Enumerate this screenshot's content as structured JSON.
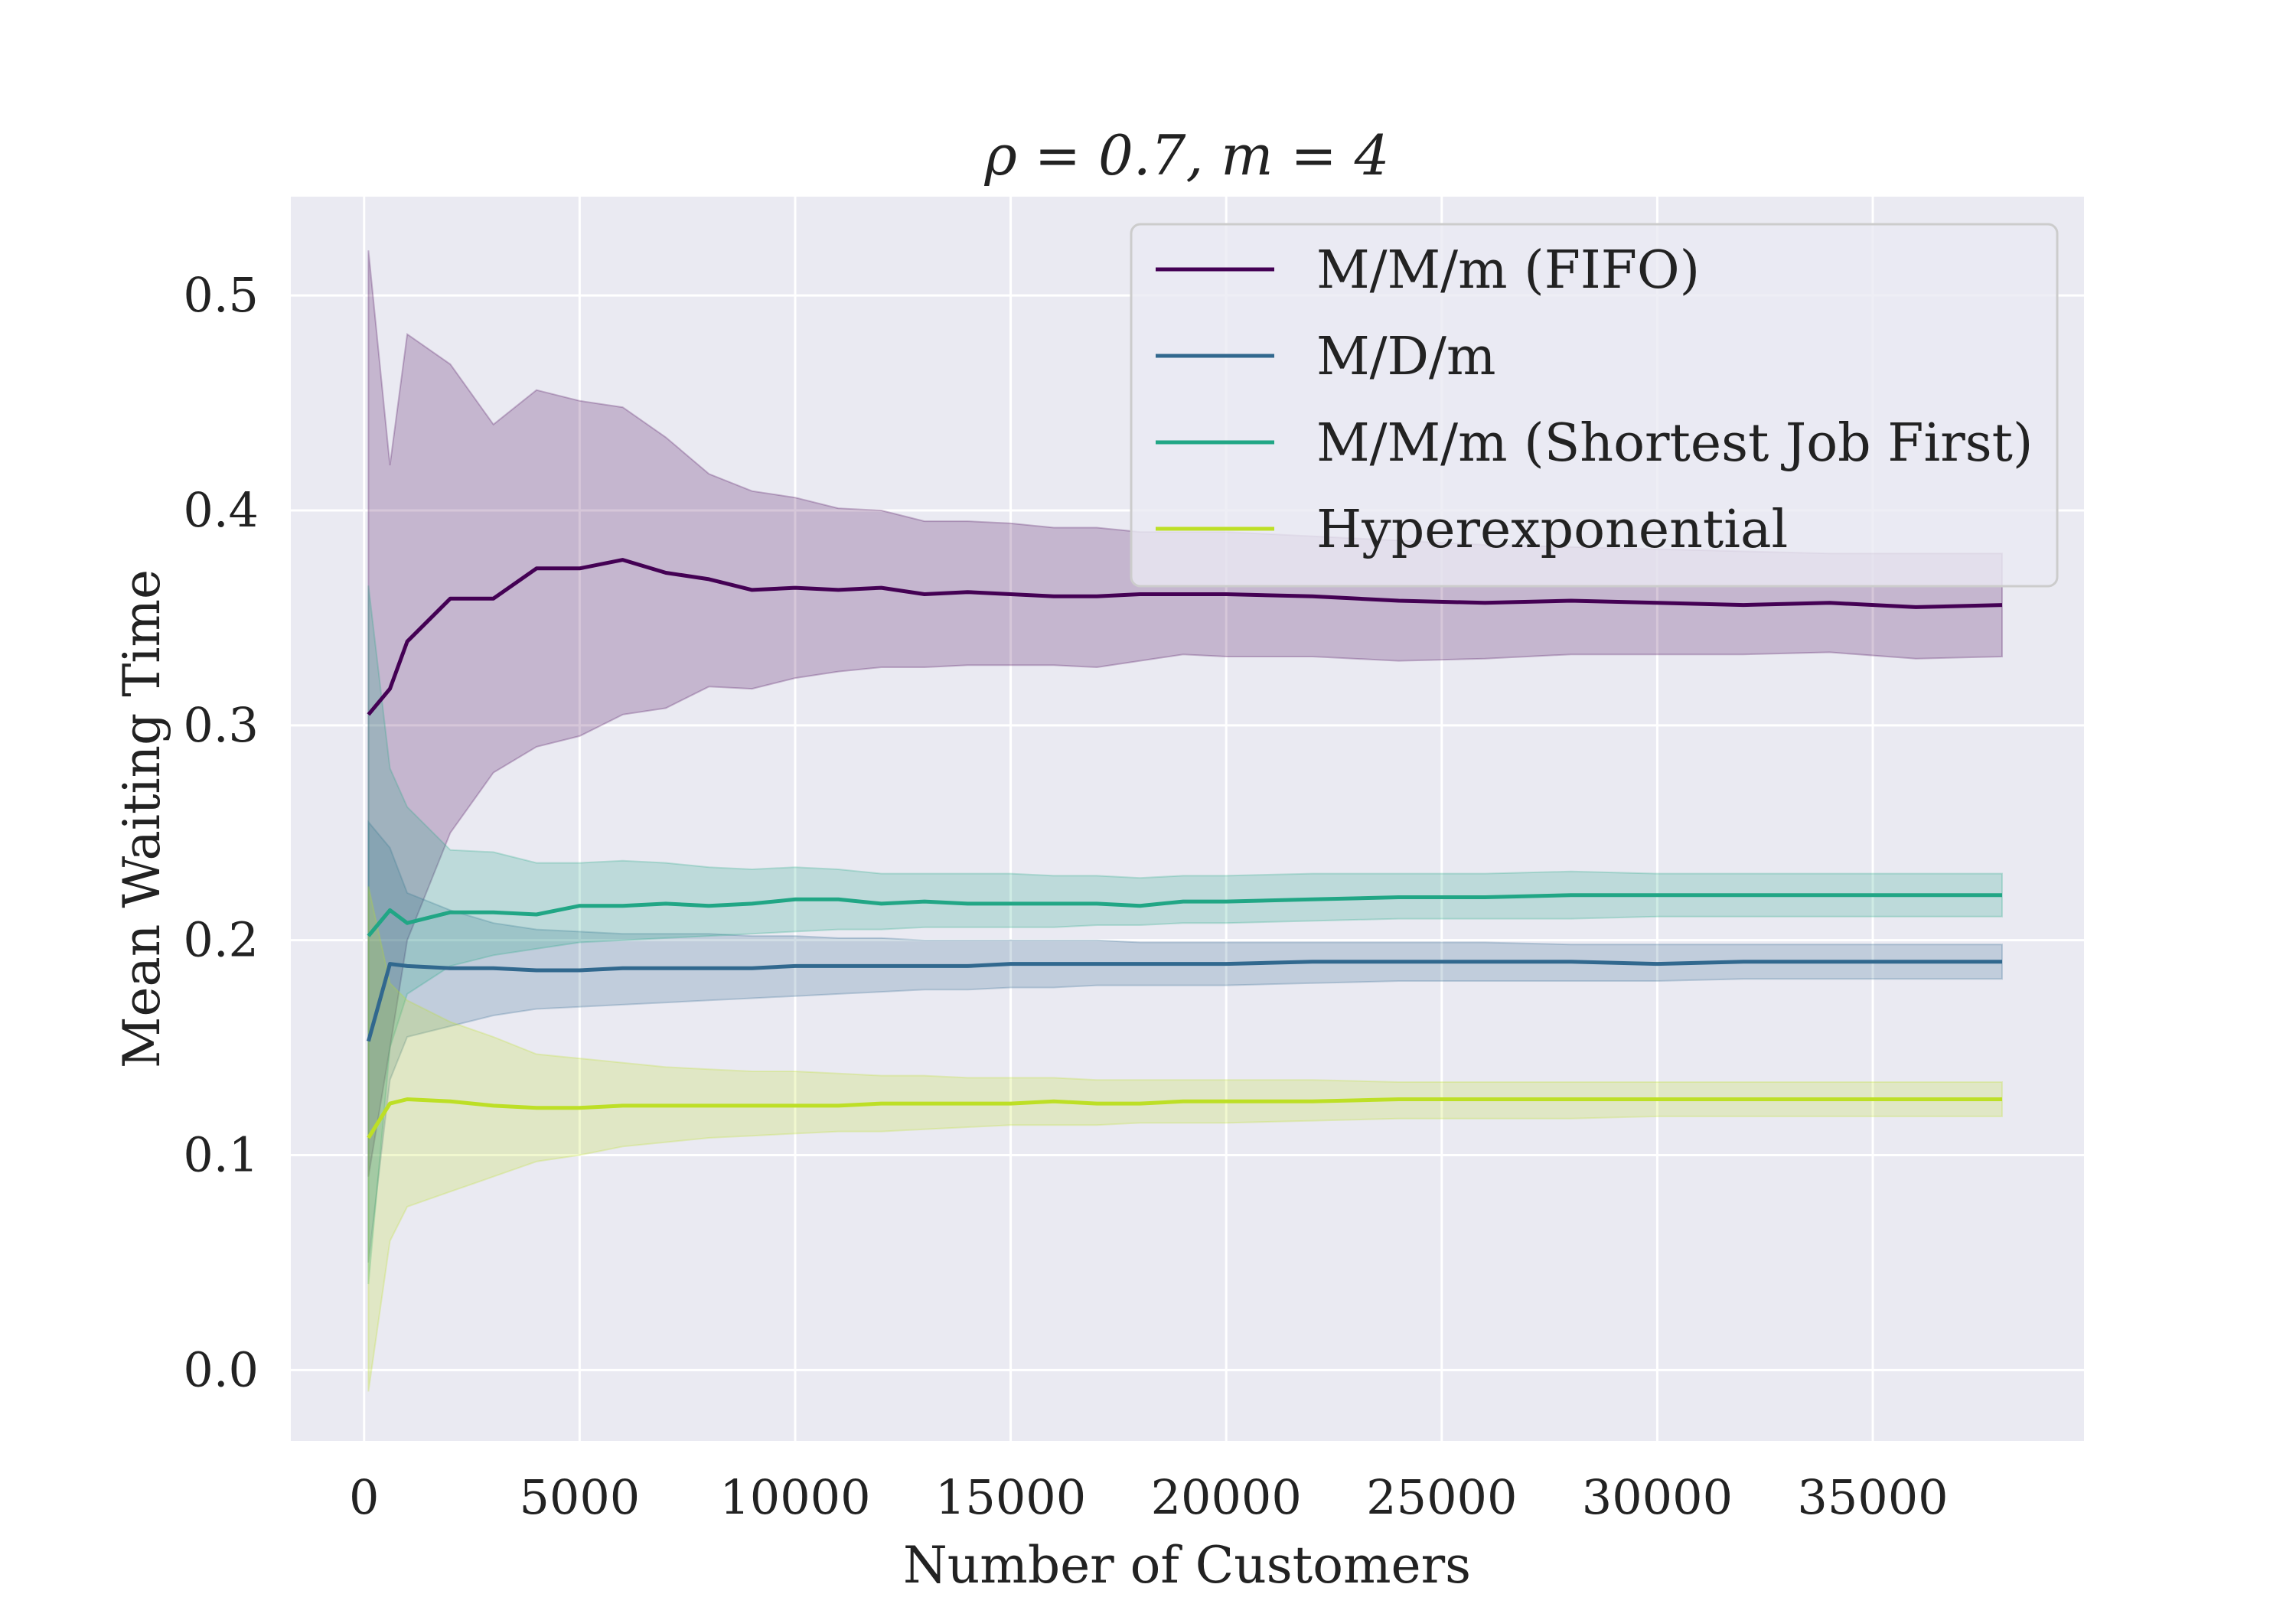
{
  "chart_data": {
    "type": "line",
    "title": "ρ = 0.7, m = 4",
    "xlabel": "Number of Customers",
    "ylabel": "Mean Waiting Time",
    "xlim": [
      -1700,
      39900
    ],
    "ylim": [
      -0.033,
      0.546
    ],
    "xticks": [
      0,
      5000,
      10000,
      15000,
      20000,
      25000,
      30000,
      35000
    ],
    "yticks": [
      0.0,
      0.1,
      0.2,
      0.3,
      0.4,
      0.5
    ],
    "xtick_labels": [
      "0",
      "5000",
      "10000",
      "15000",
      "20000",
      "25000",
      "30000",
      "35000"
    ],
    "ytick_labels": [
      "0.0",
      "0.1",
      "0.2",
      "0.3",
      "0.4",
      "0.5"
    ],
    "grid": true,
    "background": "#eaeaf2",
    "legend_position": "top-right",
    "x": [
      100,
      600,
      1000,
      2000,
      3000,
      4000,
      5000,
      6000,
      7000,
      8000,
      9000,
      10000,
      11000,
      12000,
      13000,
      14000,
      15000,
      16000,
      17000,
      18000,
      19000,
      20000,
      22000,
      24000,
      26000,
      28000,
      30000,
      32000,
      34000,
      36000,
      38000
    ],
    "series": [
      {
        "name": "M/M/m (FIFO)",
        "color": "#440154",
        "values": [
          0.305,
          0.317,
          0.339,
          0.359,
          0.359,
          0.373,
          0.373,
          0.377,
          0.371,
          0.368,
          0.363,
          0.364,
          0.363,
          0.364,
          0.361,
          0.362,
          0.361,
          0.36,
          0.36,
          0.361,
          0.361,
          0.361,
          0.36,
          0.358,
          0.357,
          0.358,
          0.357,
          0.356,
          0.357,
          0.355,
          0.356
        ],
        "lower": [
          0.09,
          0.15,
          0.2,
          0.25,
          0.278,
          0.29,
          0.295,
          0.305,
          0.308,
          0.318,
          0.317,
          0.322,
          0.325,
          0.327,
          0.327,
          0.328,
          0.328,
          0.328,
          0.327,
          0.33,
          0.333,
          0.332,
          0.332,
          0.33,
          0.331,
          0.333,
          0.333,
          0.333,
          0.334,
          0.331,
          0.332
        ],
        "upper": [
          0.521,
          0.421,
          0.482,
          0.468,
          0.44,
          0.456,
          0.451,
          0.448,
          0.434,
          0.417,
          0.409,
          0.406,
          0.401,
          0.4,
          0.395,
          0.395,
          0.394,
          0.392,
          0.392,
          0.39,
          0.39,
          0.39,
          0.388,
          0.386,
          0.384,
          0.383,
          0.382,
          0.381,
          0.38,
          0.38,
          0.38
        ]
      },
      {
        "name": "M/D/m",
        "color": "#31688e",
        "values": [
          0.153,
          0.189,
          0.188,
          0.187,
          0.187,
          0.186,
          0.186,
          0.187,
          0.187,
          0.187,
          0.187,
          0.188,
          0.188,
          0.188,
          0.188,
          0.188,
          0.189,
          0.189,
          0.189,
          0.189,
          0.189,
          0.189,
          0.19,
          0.19,
          0.19,
          0.19,
          0.189,
          0.19,
          0.19,
          0.19,
          0.19
        ],
        "lower": [
          0.05,
          0.135,
          0.155,
          0.16,
          0.165,
          0.168,
          0.169,
          0.17,
          0.171,
          0.172,
          0.173,
          0.174,
          0.175,
          0.176,
          0.177,
          0.177,
          0.178,
          0.178,
          0.179,
          0.179,
          0.179,
          0.179,
          0.18,
          0.181,
          0.181,
          0.181,
          0.181,
          0.182,
          0.182,
          0.182,
          0.182
        ],
        "upper": [
          0.255,
          0.243,
          0.222,
          0.214,
          0.208,
          0.205,
          0.204,
          0.203,
          0.203,
          0.203,
          0.202,
          0.202,
          0.201,
          0.201,
          0.2,
          0.2,
          0.2,
          0.2,
          0.2,
          0.199,
          0.199,
          0.199,
          0.199,
          0.199,
          0.199,
          0.198,
          0.198,
          0.198,
          0.198,
          0.198,
          0.198
        ]
      },
      {
        "name": "M/M/m (Shortest Job First)",
        "color": "#21a685",
        "values": [
          0.202,
          0.214,
          0.208,
          0.213,
          0.213,
          0.212,
          0.216,
          0.216,
          0.217,
          0.216,
          0.217,
          0.219,
          0.219,
          0.217,
          0.218,
          0.217,
          0.217,
          0.217,
          0.217,
          0.216,
          0.218,
          0.218,
          0.219,
          0.22,
          0.22,
          0.221,
          0.221,
          0.221,
          0.221,
          0.221,
          0.221
        ],
        "lower": [
          0.04,
          0.15,
          0.175,
          0.188,
          0.193,
          0.196,
          0.199,
          0.2,
          0.201,
          0.202,
          0.203,
          0.204,
          0.205,
          0.205,
          0.206,
          0.206,
          0.206,
          0.206,
          0.207,
          0.207,
          0.208,
          0.208,
          0.209,
          0.21,
          0.21,
          0.21,
          0.211,
          0.211,
          0.211,
          0.211,
          0.211
        ],
        "upper": [
          0.365,
          0.28,
          0.262,
          0.242,
          0.241,
          0.236,
          0.236,
          0.237,
          0.236,
          0.234,
          0.233,
          0.234,
          0.233,
          0.231,
          0.231,
          0.231,
          0.231,
          0.23,
          0.23,
          0.229,
          0.23,
          0.23,
          0.231,
          0.231,
          0.231,
          0.232,
          0.231,
          0.231,
          0.231,
          0.231,
          0.231
        ]
      },
      {
        "name": "Hyperexponential",
        "color": "#bddf26",
        "values": [
          0.108,
          0.124,
          0.126,
          0.125,
          0.123,
          0.122,
          0.122,
          0.123,
          0.123,
          0.123,
          0.123,
          0.123,
          0.123,
          0.124,
          0.124,
          0.124,
          0.124,
          0.125,
          0.124,
          0.124,
          0.125,
          0.125,
          0.125,
          0.126,
          0.126,
          0.126,
          0.126,
          0.126,
          0.126,
          0.126,
          0.126
        ],
        "lower": [
          -0.01,
          0.06,
          0.076,
          0.083,
          0.09,
          0.097,
          0.1,
          0.104,
          0.106,
          0.108,
          0.109,
          0.11,
          0.111,
          0.111,
          0.112,
          0.113,
          0.114,
          0.114,
          0.114,
          0.115,
          0.115,
          0.115,
          0.116,
          0.117,
          0.117,
          0.117,
          0.118,
          0.118,
          0.118,
          0.118,
          0.118
        ],
        "upper": [
          0.225,
          0.18,
          0.172,
          0.162,
          0.155,
          0.147,
          0.145,
          0.143,
          0.141,
          0.14,
          0.139,
          0.139,
          0.138,
          0.137,
          0.137,
          0.136,
          0.136,
          0.136,
          0.135,
          0.135,
          0.135,
          0.135,
          0.135,
          0.134,
          0.134,
          0.134,
          0.134,
          0.134,
          0.134,
          0.134,
          0.134
        ]
      }
    ]
  }
}
